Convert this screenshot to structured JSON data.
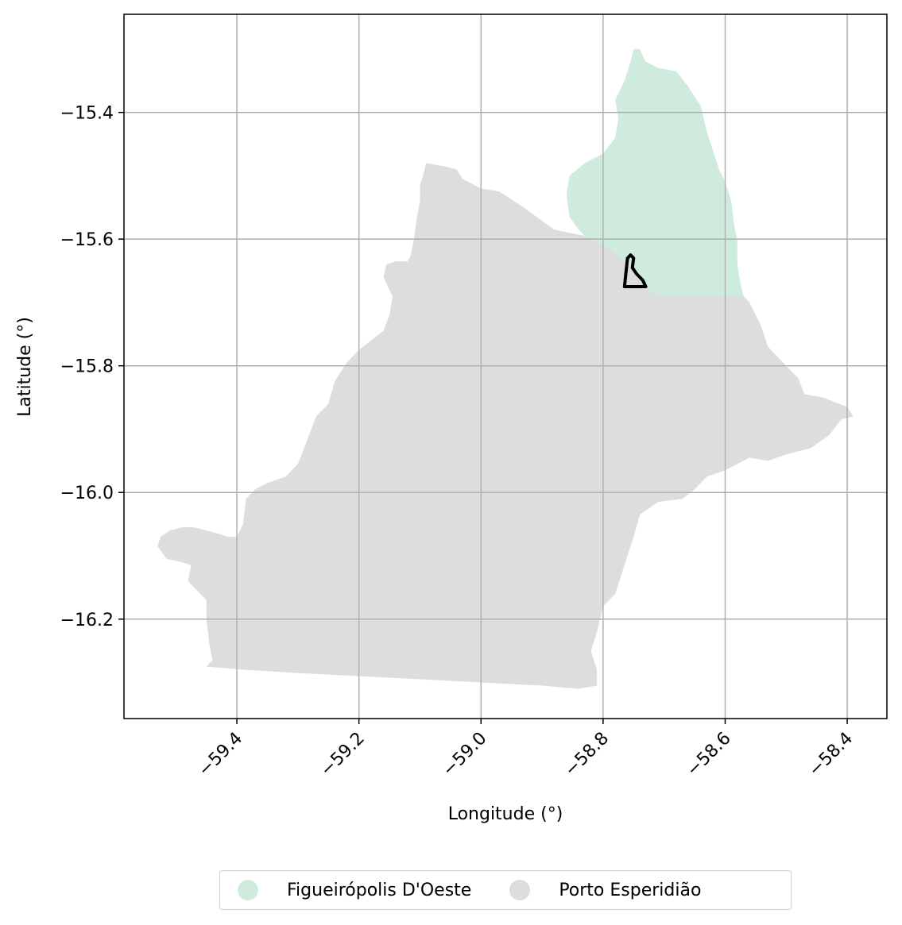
{
  "chart_data": {
    "type": "map",
    "xlabel": "Longitude (°)",
    "ylabel": "Latitude (°)",
    "xlim": [
      -59.585,
      -58.335
    ],
    "ylim": [
      -16.357,
      -15.245
    ],
    "x_ticks": [
      -59.4,
      -59.2,
      -59.0,
      -58.8,
      -58.6,
      -58.4
    ],
    "x_tick_labels": [
      "−59.4",
      "−59.2",
      "−59.0",
      "−58.8",
      "−58.6",
      "−58.4"
    ],
    "y_ticks": [
      -15.4,
      -15.6,
      -15.8,
      -16.0,
      -16.2
    ],
    "y_tick_labels": [
      "−15.4",
      "−15.6",
      "−15.8",
      "−16.0",
      "−16.2"
    ],
    "grid": true,
    "legend_position": "bottom-center",
    "regions": [
      {
        "name": "Porto Esperidião",
        "color": "#dddddd",
        "coords": [
          [
            -59.09,
            -15.48
          ],
          [
            -59.06,
            -15.485
          ],
          [
            -59.04,
            -15.49
          ],
          [
            -59.03,
            -15.505
          ],
          [
            -59.0,
            -15.52
          ],
          [
            -58.97,
            -15.525
          ],
          [
            -58.93,
            -15.55
          ],
          [
            -58.88,
            -15.585
          ],
          [
            -58.83,
            -15.595
          ],
          [
            -58.79,
            -15.615
          ],
          [
            -58.77,
            -15.63
          ],
          [
            -58.74,
            -15.66
          ],
          [
            -58.72,
            -15.685
          ],
          [
            -58.69,
            -15.69
          ],
          [
            -58.65,
            -15.69
          ],
          [
            -58.6,
            -15.69
          ],
          [
            -58.57,
            -15.69
          ],
          [
            -58.56,
            -15.7
          ],
          [
            -58.54,
            -15.74
          ],
          [
            -58.53,
            -15.77
          ],
          [
            -58.5,
            -15.8
          ],
          [
            -58.48,
            -15.82
          ],
          [
            -58.47,
            -15.845
          ],
          [
            -58.44,
            -15.85
          ],
          [
            -58.4,
            -15.865
          ],
          [
            -58.39,
            -15.88
          ],
          [
            -58.41,
            -15.885
          ],
          [
            -58.43,
            -15.91
          ],
          [
            -58.46,
            -15.93
          ],
          [
            -58.5,
            -15.94
          ],
          [
            -58.53,
            -15.95
          ],
          [
            -58.56,
            -15.945
          ],
          [
            -58.6,
            -15.965
          ],
          [
            -58.63,
            -15.975
          ],
          [
            -58.65,
            -15.995
          ],
          [
            -58.67,
            -16.01
          ],
          [
            -58.71,
            -16.015
          ],
          [
            -58.74,
            -16.035
          ],
          [
            -58.75,
            -16.07
          ],
          [
            -58.76,
            -16.1
          ],
          [
            -58.77,
            -16.13
          ],
          [
            -58.78,
            -16.16
          ],
          [
            -58.8,
            -16.18
          ],
          [
            -58.81,
            -16.22
          ],
          [
            -58.82,
            -16.25
          ],
          [
            -58.81,
            -16.28
          ],
          [
            -58.81,
            -16.305
          ],
          [
            -58.84,
            -16.31
          ],
          [
            -58.9,
            -16.305
          ],
          [
            -59.0,
            -16.3
          ],
          [
            -59.1,
            -16.295
          ],
          [
            -59.2,
            -16.29
          ],
          [
            -59.3,
            -16.285
          ],
          [
            -59.385,
            -16.28
          ],
          [
            -59.45,
            -16.275
          ],
          [
            -59.44,
            -16.265
          ],
          [
            -59.445,
            -16.24
          ],
          [
            -59.45,
            -16.2
          ],
          [
            -59.45,
            -16.17
          ],
          [
            -59.465,
            -16.155
          ],
          [
            -59.48,
            -16.14
          ],
          [
            -59.475,
            -16.115
          ],
          [
            -59.49,
            -16.11
          ],
          [
            -59.515,
            -16.105
          ],
          [
            -59.53,
            -16.085
          ],
          [
            -59.525,
            -16.07
          ],
          [
            -59.51,
            -16.06
          ],
          [
            -59.49,
            -16.055
          ],
          [
            -59.47,
            -16.055
          ],
          [
            -59.45,
            -16.06
          ],
          [
            -59.43,
            -16.065
          ],
          [
            -59.415,
            -16.07
          ],
          [
            -59.4,
            -16.07
          ],
          [
            -59.39,
            -16.05
          ],
          [
            -59.385,
            -16.01
          ],
          [
            -59.37,
            -15.995
          ],
          [
            -59.35,
            -15.985
          ],
          [
            -59.32,
            -15.975
          ],
          [
            -59.3,
            -15.955
          ],
          [
            -59.29,
            -15.93
          ],
          [
            -59.28,
            -15.905
          ],
          [
            -59.27,
            -15.88
          ],
          [
            -59.25,
            -15.86
          ],
          [
            -59.24,
            -15.825
          ],
          [
            -59.22,
            -15.795
          ],
          [
            -59.2,
            -15.775
          ],
          [
            -59.18,
            -15.76
          ],
          [
            -59.16,
            -15.745
          ],
          [
            -59.15,
            -15.72
          ],
          [
            -59.145,
            -15.69
          ],
          [
            -59.16,
            -15.66
          ],
          [
            -59.155,
            -15.64
          ],
          [
            -59.14,
            -15.635
          ],
          [
            -59.12,
            -15.635
          ],
          [
            -59.115,
            -15.625
          ],
          [
            -59.11,
            -15.6
          ],
          [
            -59.105,
            -15.565
          ],
          [
            -59.1,
            -15.54
          ],
          [
            -59.1,
            -15.515
          ],
          [
            -59.095,
            -15.5
          ]
        ]
      },
      {
        "name": "Figueirópolis D'Oeste",
        "color": "#ceebde",
        "coords": [
          [
            -58.74,
            -15.3
          ],
          [
            -58.73,
            -15.32
          ],
          [
            -58.71,
            -15.33
          ],
          [
            -58.68,
            -15.335
          ],
          [
            -58.66,
            -15.36
          ],
          [
            -58.64,
            -15.39
          ],
          [
            -58.63,
            -15.43
          ],
          [
            -58.62,
            -15.46
          ],
          [
            -58.61,
            -15.49
          ],
          [
            -58.6,
            -15.51
          ],
          [
            -58.59,
            -15.54
          ],
          [
            -58.585,
            -15.58
          ],
          [
            -58.58,
            -15.6
          ],
          [
            -58.58,
            -15.64
          ],
          [
            -58.575,
            -15.67
          ],
          [
            -58.57,
            -15.69
          ],
          [
            -58.6,
            -15.69
          ],
          [
            -58.65,
            -15.69
          ],
          [
            -58.69,
            -15.69
          ],
          [
            -58.72,
            -15.685
          ],
          [
            -58.74,
            -15.66
          ],
          [
            -58.77,
            -15.63
          ],
          [
            -58.79,
            -15.615
          ],
          [
            -58.83,
            -15.595
          ],
          [
            -58.84,
            -15.585
          ],
          [
            -58.855,
            -15.565
          ],
          [
            -58.86,
            -15.53
          ],
          [
            -58.855,
            -15.5
          ],
          [
            -58.83,
            -15.48
          ],
          [
            -58.8,
            -15.465
          ],
          [
            -58.78,
            -15.44
          ],
          [
            -58.775,
            -15.41
          ],
          [
            -58.78,
            -15.38
          ],
          [
            -58.765,
            -15.35
          ],
          [
            -58.755,
            -15.32
          ],
          [
            -58.75,
            -15.3
          ]
        ]
      }
    ],
    "outline": {
      "name": "",
      "coords": [
        [
          -58.765,
          -15.675
        ],
        [
          -58.76,
          -15.63
        ],
        [
          -58.755,
          -15.625
        ],
        [
          -58.75,
          -15.63
        ],
        [
          -58.752,
          -15.645
        ],
        [
          -58.745,
          -15.655
        ],
        [
          -58.735,
          -15.665
        ],
        [
          -58.73,
          -15.675
        ],
        [
          -58.765,
          -15.675
        ]
      ]
    },
    "legend": [
      {
        "label": "Figueirópolis D'Oeste",
        "color": "#ceebde"
      },
      {
        "label": "Porto Esperidião",
        "color": "#dddddd"
      }
    ]
  }
}
